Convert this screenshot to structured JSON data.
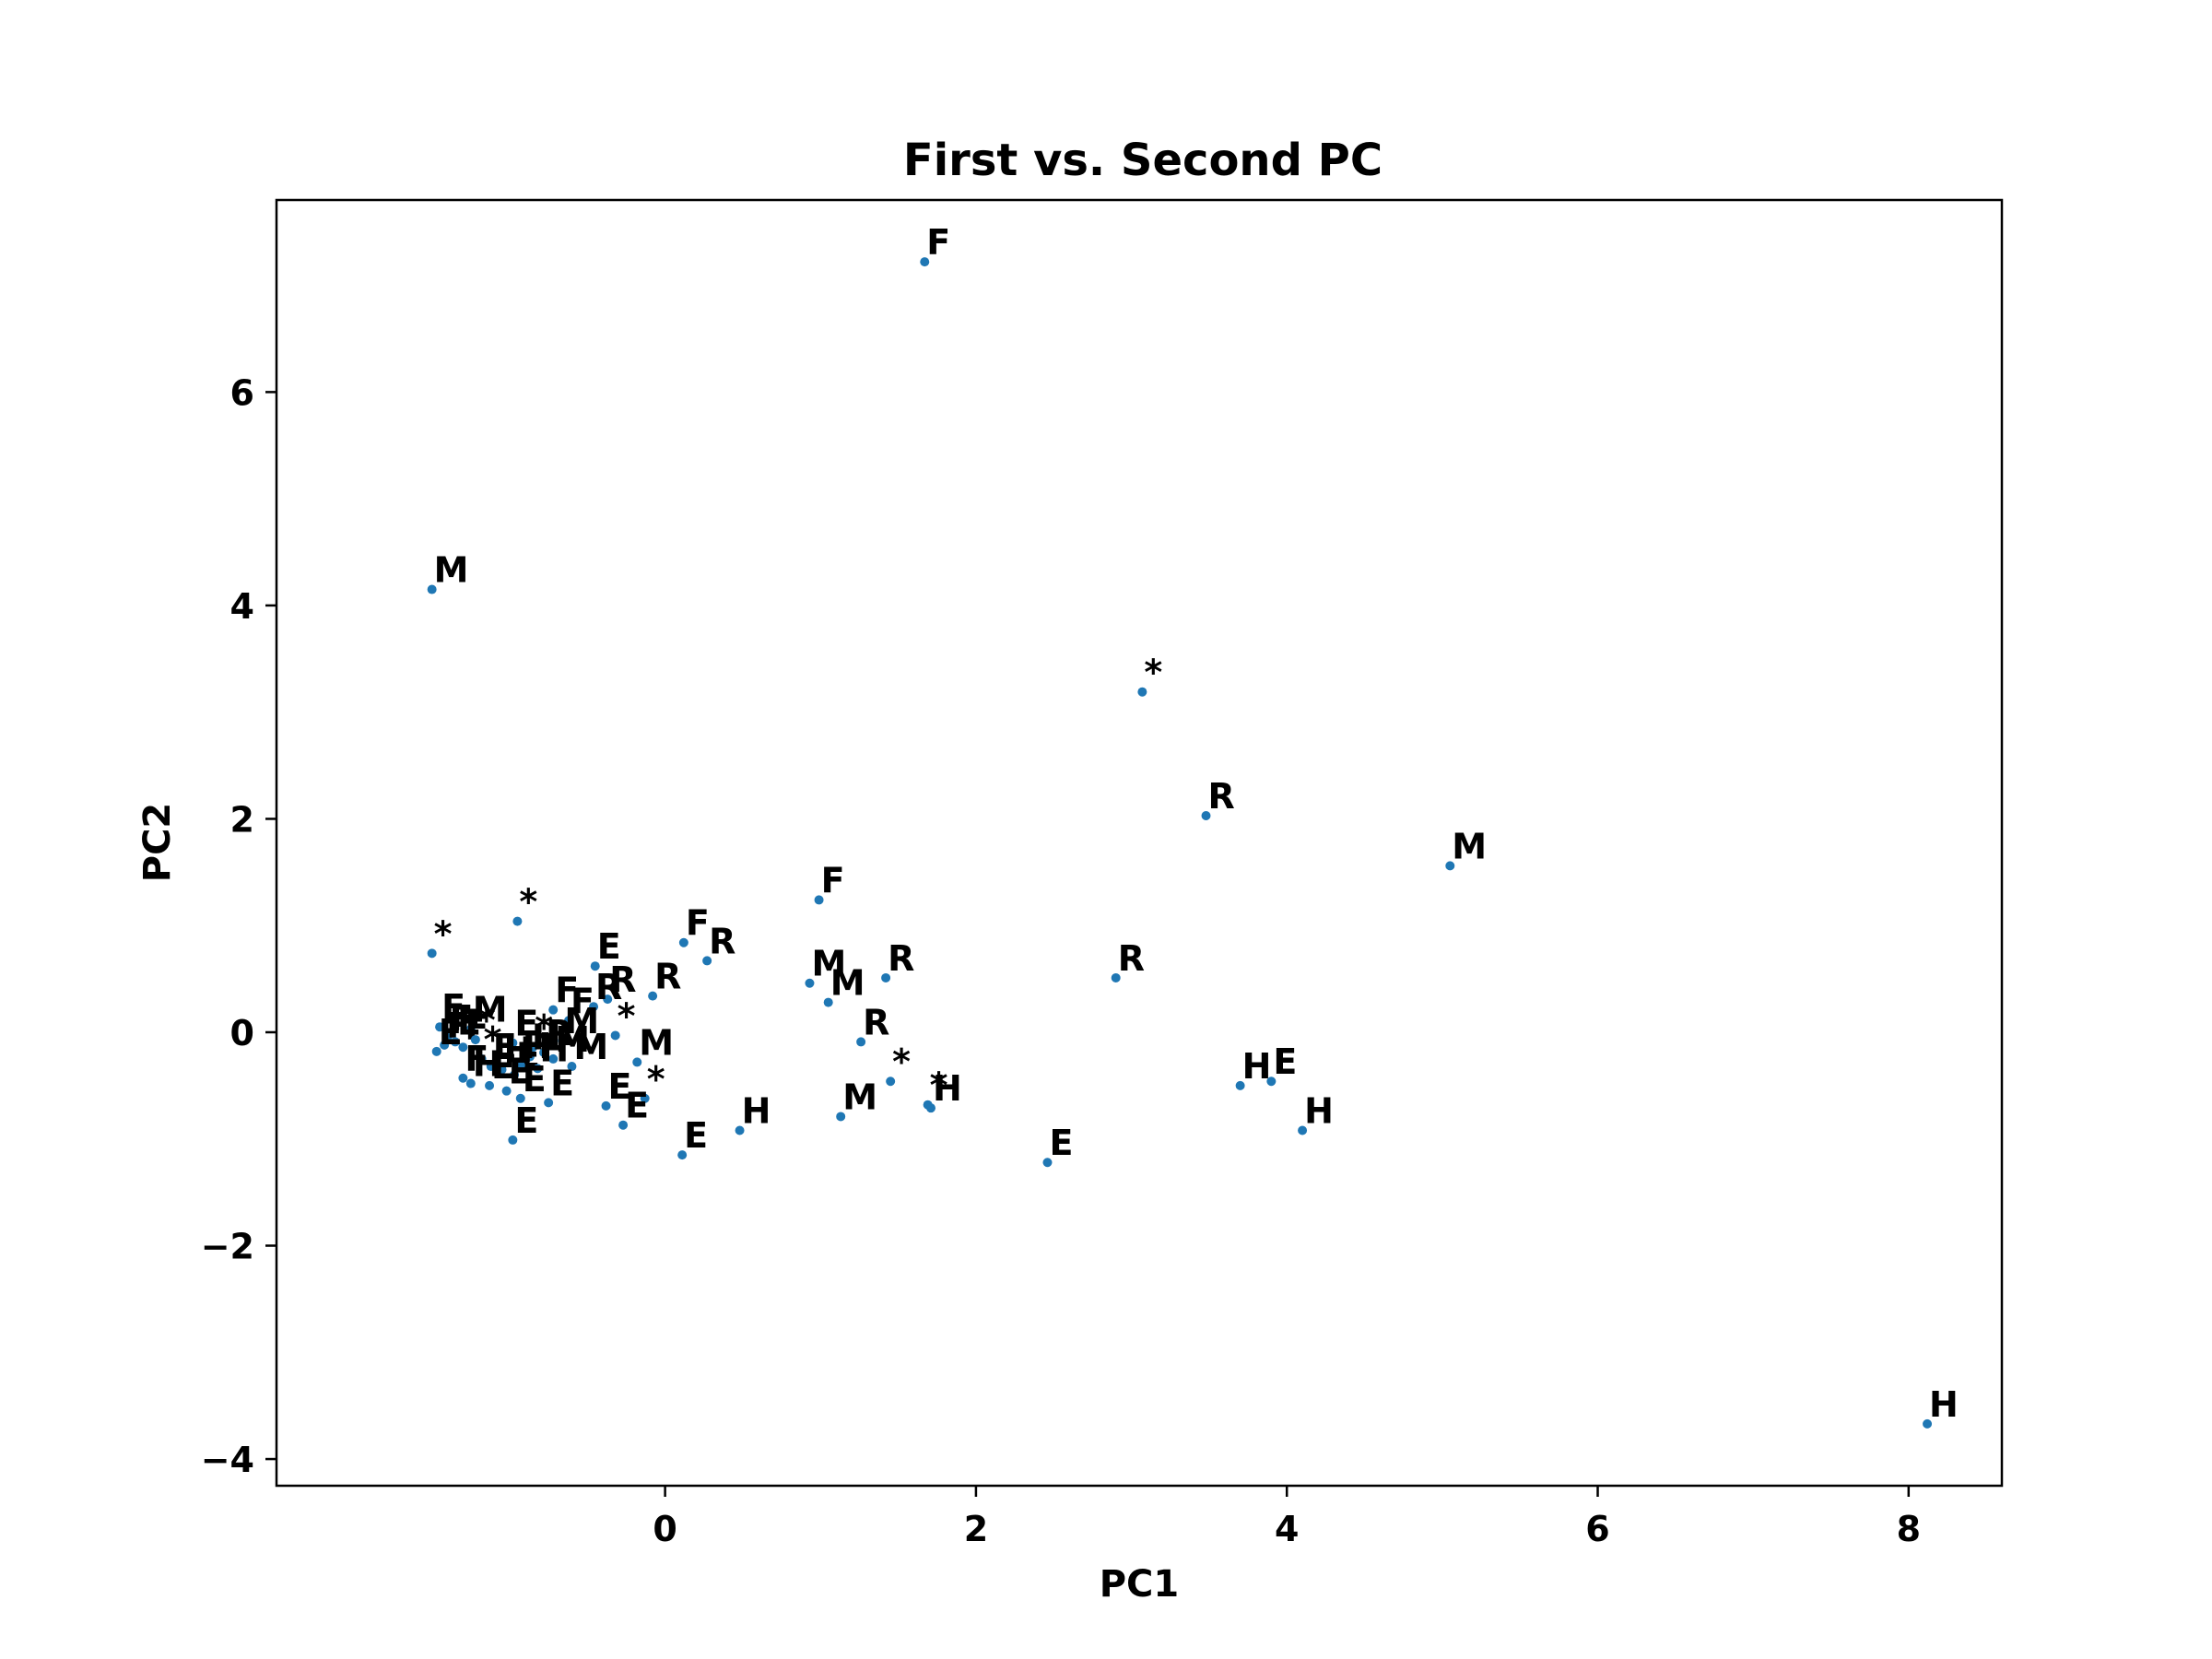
{
  "chart_data": {
    "type": "scatter",
    "title": "First vs. Second PC",
    "xlabel": "PC1",
    "ylabel": "PC2",
    "xlim": [
      -2.5,
      8.6
    ],
    "ylim": [
      -4.25,
      7.8
    ],
    "xticks": [
      0,
      2,
      4,
      6,
      8
    ],
    "yticks": [
      -4,
      -2,
      0,
      2,
      4,
      6
    ],
    "xtick_labels": [
      "0",
      "2",
      "4",
      "6",
      "8"
    ],
    "ytick_labels": [
      "−4",
      "−2",
      "0",
      "2",
      "4",
      "6"
    ],
    "grid": false,
    "marker_color": "#1f77b4",
    "points": [
      {
        "x": 1.67,
        "y": 7.22,
        "label": "F"
      },
      {
        "x": -1.5,
        "y": 4.15,
        "label": "M"
      },
      {
        "x": 3.07,
        "y": 3.19,
        "label": "*"
      },
      {
        "x": 3.48,
        "y": 2.03,
        "label": "R"
      },
      {
        "x": 5.05,
        "y": 1.56,
        "label": "M"
      },
      {
        "x": 0.99,
        "y": 1.24,
        "label": "F"
      },
      {
        "x": -0.95,
        "y": 1.04,
        "label": "*"
      },
      {
        "x": -1.5,
        "y": 0.74,
        "label": "*"
      },
      {
        "x": 0.12,
        "y": 0.84,
        "label": "F"
      },
      {
        "x": 0.27,
        "y": 0.67,
        "label": "R"
      },
      {
        "x": -0.45,
        "y": 0.62,
        "label": "E"
      },
      {
        "x": 0.93,
        "y": 0.46,
        "label": "M"
      },
      {
        "x": 1.42,
        "y": 0.51,
        "label": "R"
      },
      {
        "x": 2.9,
        "y": 0.51,
        "label": "R"
      },
      {
        "x": -0.08,
        "y": 0.34,
        "label": "R"
      },
      {
        "x": 1.05,
        "y": 0.28,
        "label": "M"
      },
      {
        "x": -0.37,
        "y": 0.31,
        "label": "R"
      },
      {
        "x": -0.46,
        "y": 0.24,
        "label": "R"
      },
      {
        "x": -0.72,
        "y": 0.21,
        "label": "F"
      },
      {
        "x": -0.62,
        "y": 0.11,
        "label": "F"
      },
      {
        "x": -0.32,
        "y": -0.03,
        "label": "*"
      },
      {
        "x": -0.66,
        "y": -0.08,
        "label": "M"
      },
      {
        "x": -1.45,
        "y": 0.05,
        "label": "E"
      },
      {
        "x": -1.25,
        "y": 0.03,
        "label": "M"
      },
      {
        "x": -1.4,
        "y": -0.05,
        "label": "F"
      },
      {
        "x": -1.42,
        "y": -0.12,
        "label": "F"
      },
      {
        "x": -1.35,
        "y": -0.09,
        "label": "E"
      },
      {
        "x": -1.3,
        "y": -0.14,
        "label": "F"
      },
      {
        "x": -1.47,
        "y": -0.18,
        "label": "E"
      },
      {
        "x": -1.22,
        "y": -0.07,
        "label": "*"
      },
      {
        "x": -0.98,
        "y": -0.1,
        "label": "E"
      },
      {
        "x": -0.85,
        "y": -0.14,
        "label": "*"
      },
      {
        "x": -0.78,
        "y": -0.19,
        "label": "R"
      },
      {
        "x": -0.87,
        "y": -0.23,
        "label": "H"
      },
      {
        "x": -0.72,
        "y": -0.25,
        "label": "M"
      },
      {
        "x": -1.18,
        "y": -0.25,
        "label": "*"
      },
      {
        "x": -1.12,
        "y": -0.32,
        "label": "E"
      },
      {
        "x": -1.05,
        "y": -0.35,
        "label": "H"
      },
      {
        "x": -0.97,
        "y": -0.4,
        "label": "E"
      },
      {
        "x": -0.93,
        "y": -0.31,
        "label": "H"
      },
      {
        "x": -0.82,
        "y": -0.34,
        "label": "H"
      },
      {
        "x": -0.6,
        "y": -0.32,
        "label": "M"
      },
      {
        "x": -1.3,
        "y": -0.43,
        "label": "F"
      },
      {
        "x": -1.25,
        "y": -0.48,
        "label": "H"
      },
      {
        "x": -1.13,
        "y": -0.5,
        "label": "E"
      },
      {
        "x": -1.02,
        "y": -0.55,
        "label": "E"
      },
      {
        "x": -0.93,
        "y": -0.62,
        "label": "E"
      },
      {
        "x": -0.18,
        "y": -0.28,
        "label": "M"
      },
      {
        "x": 1.26,
        "y": -0.09,
        "label": "R"
      },
      {
        "x": 1.45,
        "y": -0.46,
        "label": "*"
      },
      {
        "x": 1.69,
        "y": -0.68,
        "label": "*"
      },
      {
        "x": 1.71,
        "y": -0.71,
        "label": "H"
      },
      {
        "x": -0.75,
        "y": -0.66,
        "label": "E"
      },
      {
        "x": -0.38,
        "y": -0.69,
        "label": "E"
      },
      {
        "x": -0.13,
        "y": -0.62,
        "label": "*"
      },
      {
        "x": -0.27,
        "y": -0.87,
        "label": "E"
      },
      {
        "x": 1.13,
        "y": -0.79,
        "label": "M"
      },
      {
        "x": 0.48,
        "y": -0.92,
        "label": "H"
      },
      {
        "x": -0.98,
        "y": -1.01,
        "label": "E"
      },
      {
        "x": 0.11,
        "y": -1.15,
        "label": "E"
      },
      {
        "x": 2.46,
        "y": -1.22,
        "label": "E"
      },
      {
        "x": 3.7,
        "y": -0.5,
        "label": "H"
      },
      {
        "x": 3.9,
        "y": -0.46,
        "label": "E"
      },
      {
        "x": 4.1,
        "y": -0.92,
        "label": "H"
      },
      {
        "x": 8.12,
        "y": -3.67,
        "label": "H"
      }
    ]
  }
}
